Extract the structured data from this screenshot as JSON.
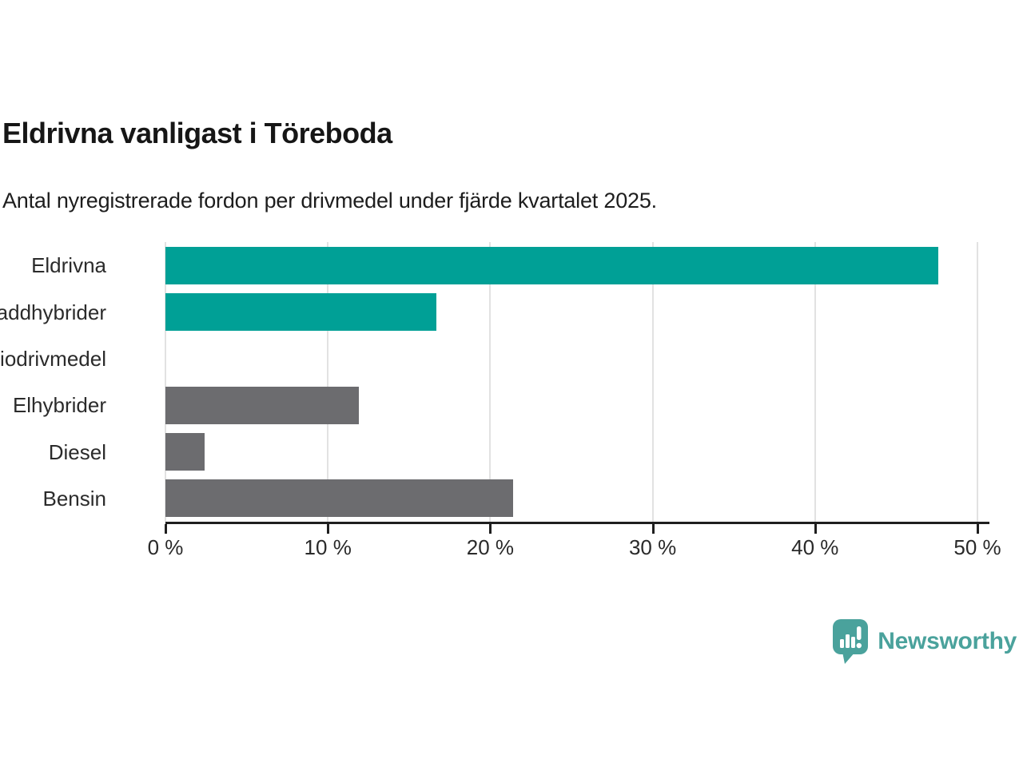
{
  "header": {
    "title": "Eldrivna vanligast i Töreboda",
    "subtitle": "Antal nyregistrerade fordon per drivmedel under fjärde kvartalet 2025."
  },
  "chart_data": {
    "type": "bar",
    "orientation": "horizontal",
    "title": "Eldrivna vanligast i Töreboda",
    "subtitle": "Antal nyregistrerade fordon per drivmedel under fjärde kvartalet 2025.",
    "categories": [
      "Eldrivna",
      "Laddhybrider",
      "Biodrivmedel",
      "Elhybrider",
      "Diesel",
      "Bensin"
    ],
    "values": [
      47.6,
      16.7,
      0,
      11.9,
      2.4,
      21.4
    ],
    "unit": "%",
    "bar_colors": [
      "#00a096",
      "#00a096",
      "#6c6c6f",
      "#6c6c6f",
      "#6c6c6f",
      "#6c6c6f"
    ],
    "xlim": [
      0,
      50
    ],
    "xticks": [
      0,
      10,
      20,
      30,
      40,
      50
    ],
    "xtick_labels": [
      "0 %",
      "10 %",
      "20 %",
      "30 %",
      "40 %",
      "50 %"
    ],
    "grid": "vertical",
    "legend": "none",
    "xlabel": "",
    "ylabel": ""
  },
  "footer": {
    "brand": "Newsworthy"
  },
  "colors": {
    "accent_teal": "#00a096",
    "neutral_gray": "#6c6c6f",
    "brand_teal": "#4aa29c",
    "grid": "#e2e2e2",
    "axis": "#1f1f1f",
    "text": "#161616"
  }
}
